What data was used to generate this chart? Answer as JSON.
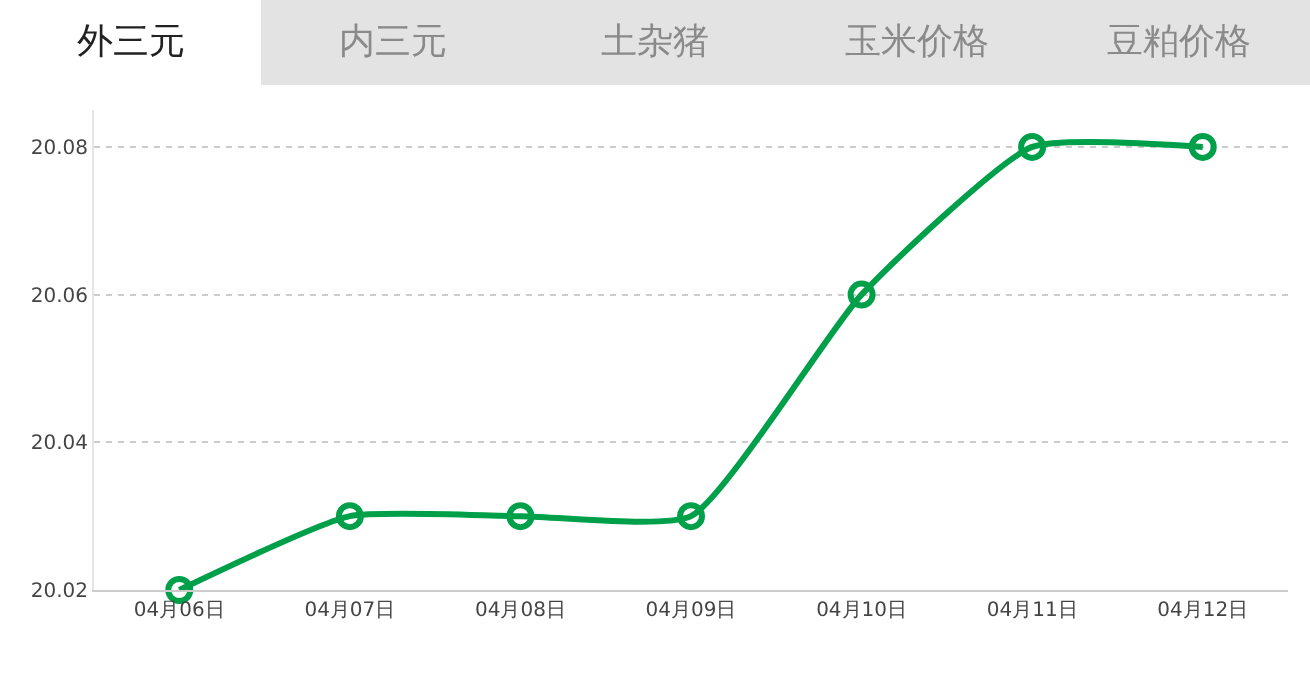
{
  "chart_data": {
    "type": "line",
    "categories": [
      "04月06日",
      "04月07日",
      "04月08日",
      "04月09日",
      "04月10日",
      "04月11日",
      "04月12日"
    ],
    "series": [
      {
        "color": "#00a04a",
        "values": [
          20.02,
          20.03,
          20.03,
          20.03,
          20.06,
          20.08,
          20.08
        ]
      }
    ],
    "ylim": [
      20.02,
      20.085
    ],
    "yticks": [
      20.02,
      20.04,
      20.06,
      20.08
    ],
    "grid": "y",
    "marker": "circle",
    "line_style": "solid",
    "annotations": [
      "外三元",
      "内三元",
      "土杂猪",
      "玉米价格",
      "豆粕价格"
    ]
  }
}
